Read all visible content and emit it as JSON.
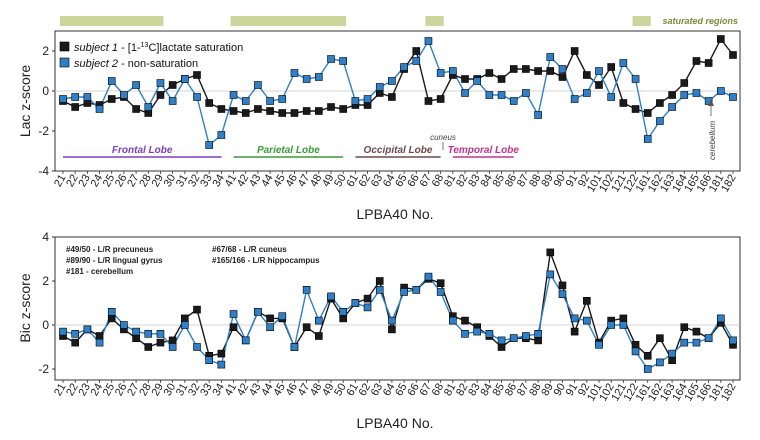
{
  "colors": {
    "subject1": "#1a1a1a",
    "subject2": "#2f80c8",
    "saturated_band": "#c3cf8a",
    "frontal": "#7b3fc4",
    "parietal": "#3a9a3a",
    "occipital": "#6e4a4a",
    "temporal": "#c0358a",
    "region_label": "#7a8c3a"
  },
  "chart_data": [
    {
      "type": "line",
      "panel": "top",
      "ylabel": "Lac z-score",
      "xlabel": "LPBA40 No.",
      "ylim": [
        -4,
        3
      ],
      "yticks": [
        -4,
        -2,
        0,
        2
      ],
      "categories": [
        "21",
        "22",
        "23",
        "24",
        "25",
        "26",
        "27",
        "28",
        "29",
        "30",
        "31",
        "32",
        "33",
        "34",
        "41",
        "42",
        "43",
        "44",
        "45",
        "46",
        "47",
        "48",
        "49",
        "50",
        "61",
        "62",
        "63",
        "64",
        "65",
        "66",
        "67",
        "68",
        "81",
        "82",
        "83",
        "84",
        "85",
        "86",
        "87",
        "88",
        "89",
        "90",
        "91",
        "92",
        "101",
        "102",
        "121",
        "122",
        "161",
        "162",
        "163",
        "164",
        "165",
        "166",
        "181",
        "182"
      ],
      "series": [
        {
          "name": "subject 1",
          "legend_prefix": "subject 1",
          "legend_suffix": " - [1-",
          "legend_sup": "13",
          "legend_tail": "C]lactate saturation",
          "values": [
            -0.5,
            -0.8,
            -0.6,
            -0.7,
            -0.4,
            -0.3,
            -0.9,
            -1.1,
            -0.2,
            0.3,
            0.6,
            0.8,
            -0.6,
            -0.9,
            -1.0,
            -1.1,
            -0.9,
            -1.0,
            -1.1,
            -1.1,
            -1.0,
            -1.0,
            -0.8,
            -0.9,
            -0.7,
            -0.7,
            -0.1,
            -0.3,
            1.1,
            2.0,
            -0.5,
            -0.4,
            0.8,
            0.6,
            0.6,
            0.9,
            0.6,
            1.1,
            1.1,
            1.0,
            1.0,
            0.7,
            2.0,
            0.8,
            0.3,
            1.2,
            -0.6,
            -0.9,
            -1.1,
            -0.6,
            -0.2,
            0.4,
            1.5,
            1.4,
            2.6,
            1.8
          ]
        },
        {
          "name": "subject 2",
          "legend_prefix": "subject 2",
          "legend_suffix": " - non-saturation",
          "values": [
            -0.4,
            -0.3,
            -0.3,
            -0.9,
            0.5,
            -0.2,
            0.3,
            -0.8,
            0.4,
            -0.5,
            0.6,
            -0.3,
            -2.7,
            -2.2,
            -0.2,
            -0.5,
            0.3,
            -0.5,
            -0.4,
            0.9,
            0.6,
            0.7,
            1.6,
            1.5,
            -0.5,
            -0.4,
            0.2,
            0.5,
            1.2,
            1.5,
            2.5,
            0.9,
            1.0,
            -0.1,
            0.5,
            -0.2,
            -0.2,
            -0.5,
            -0.1,
            -1.2,
            1.7,
            1.1,
            -0.4,
            -0.1,
            1.0,
            -0.3,
            1.4,
            0.6,
            -2.4,
            -1.5,
            -0.8,
            -0.2,
            -0.1,
            -0.5,
            0.0,
            -0.3
          ]
        }
      ],
      "lobes": [
        {
          "name": "Frontal Lobe",
          "start": "21",
          "end": "34",
          "color_key": "frontal"
        },
        {
          "name": "Parietal Lobe",
          "start": "41",
          "end": "50",
          "color_key": "parietal"
        },
        {
          "name": "Occipital Lobe",
          "start": "61",
          "end": "68",
          "color_key": "occipital"
        },
        {
          "name": "Temporal Lobe",
          "start": "81",
          "end": "86",
          "color_key": "temporal"
        }
      ],
      "annotations": {
        "cuneus": "cuneus",
        "cerebellum": "cerebellum",
        "saturated_regions": "saturated regions"
      },
      "saturated_ranges": [
        [
          "21",
          "29"
        ],
        [
          "41",
          "50"
        ],
        [
          "67",
          "68"
        ],
        [
          "122",
          "161"
        ]
      ]
    },
    {
      "type": "line",
      "panel": "bottom",
      "ylabel": "Bic z-score",
      "xlabel": "LPBA40 No.",
      "ylim": [
        -2.5,
        4
      ],
      "yticks": [
        -2,
        0,
        2,
        4
      ],
      "categories": [
        "21",
        "22",
        "23",
        "24",
        "25",
        "26",
        "27",
        "28",
        "29",
        "30",
        "31",
        "32",
        "33",
        "34",
        "41",
        "42",
        "43",
        "44",
        "45",
        "46",
        "47",
        "48",
        "49",
        "50",
        "61",
        "62",
        "63",
        "64",
        "65",
        "66",
        "67",
        "68",
        "81",
        "82",
        "83",
        "84",
        "85",
        "86",
        "87",
        "88",
        "89",
        "90",
        "91",
        "92",
        "101",
        "102",
        "121",
        "122",
        "161",
        "162",
        "163",
        "164",
        "165",
        "166",
        "181",
        "182"
      ],
      "series": [
        {
          "name": "subject 1",
          "values": [
            -0.5,
            -0.8,
            -0.2,
            -0.5,
            0.3,
            -0.2,
            -0.6,
            -1.0,
            -0.8,
            -0.7,
            0.3,
            0.7,
            -1.4,
            -1.3,
            -0.1,
            -0.7,
            0.6,
            0.3,
            0.3,
            -1.0,
            -0.1,
            -0.5,
            1.2,
            0.3,
            1.0,
            1.2,
            2.0,
            -0.2,
            1.7,
            1.6,
            2.1,
            1.9,
            0.4,
            0.2,
            -0.1,
            -0.5,
            -1.0,
            -0.6,
            -0.6,
            -0.7,
            3.3,
            1.8,
            -0.3,
            1.1,
            -0.8,
            0.2,
            0.3,
            -0.9,
            -1.4,
            -0.6,
            -1.6,
            -0.1,
            -0.3,
            -0.6,
            0.1,
            -0.9
          ]
        },
        {
          "name": "subject 2",
          "values": [
            -0.3,
            -0.4,
            -0.2,
            -0.8,
            0.6,
            0.0,
            -0.3,
            -0.4,
            -0.4,
            -1.0,
            0.0,
            -1.0,
            -1.6,
            -1.8,
            0.5,
            -0.7,
            0.6,
            -0.1,
            0.4,
            -1.0,
            1.6,
            0.2,
            1.3,
            0.6,
            1.0,
            0.8,
            1.6,
            0.2,
            1.5,
            1.6,
            2.2,
            1.5,
            0.2,
            -0.4,
            -0.3,
            -0.4,
            -0.7,
            -0.6,
            -0.5,
            -0.4,
            2.3,
            1.4,
            0.3,
            0.2,
            -0.9,
            0.0,
            0.0,
            -1.2,
            -2.0,
            -1.7,
            -1.3,
            -0.8,
            -0.8,
            -0.6,
            0.3,
            -0.7
          ]
        }
      ],
      "annotations": {
        "col1": [
          "#49/50 - L/R precuneus",
          "#89/90 - L/R lingual gyrus",
          "#181 - cerebellum"
        ],
        "col2": [
          "#67/68 - L/R cuneus",
          "#165/166 - L/R hippocampus"
        ]
      }
    }
  ]
}
